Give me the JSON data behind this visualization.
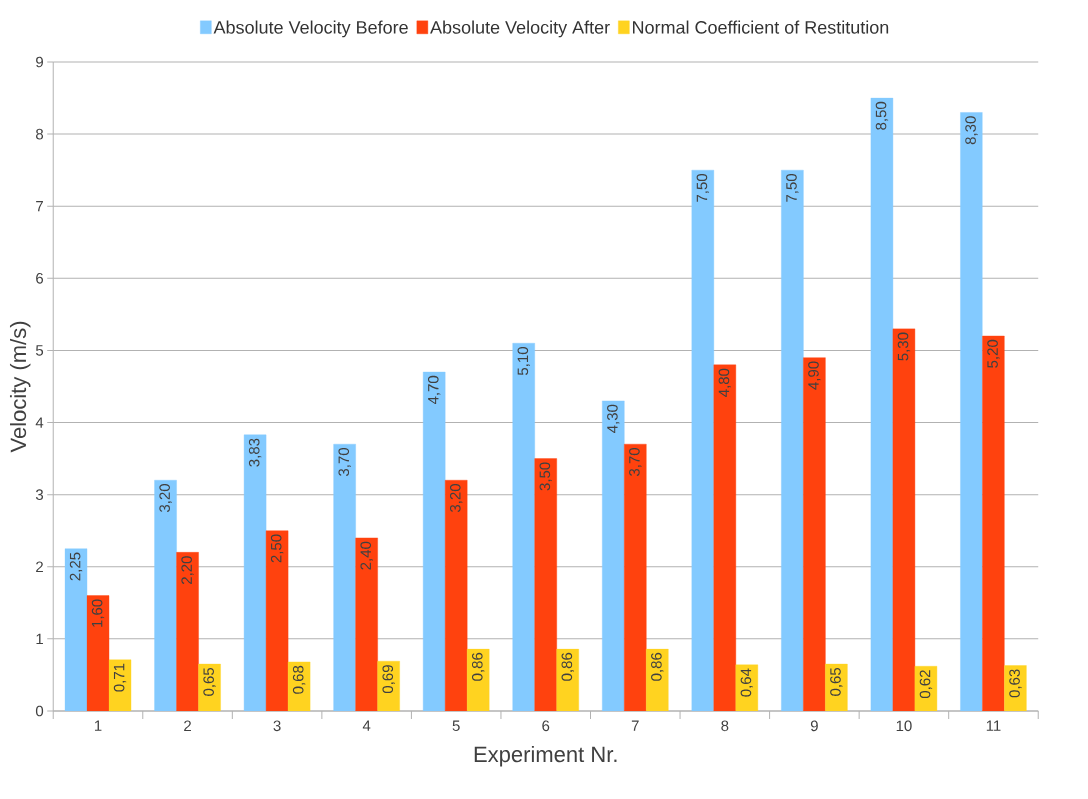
{
  "chart_data": {
    "type": "bar",
    "xlabel": "Experiment Nr.",
    "ylabel": "Velocity (m/s)",
    "categories": [
      "1",
      "2",
      "3",
      "4",
      "5",
      "6",
      "7",
      "8",
      "9",
      "10",
      "11"
    ],
    "series": [
      {
        "name": "Absolute Velocity Before",
        "color": "#83caff",
        "values": [
          2.25,
          3.2,
          3.83,
          3.7,
          4.7,
          5.1,
          4.3,
          7.5,
          7.5,
          8.5,
          8.3
        ],
        "value_labels": [
          "2,25",
          "3,20",
          "3,83",
          "3,70",
          "4,70",
          "5,10",
          "4,30",
          "7,50",
          "7,50",
          "8,50",
          "8,30"
        ]
      },
      {
        "name": "Absolute Velocity After",
        "color": "#ff420e",
        "values": [
          1.6,
          2.2,
          2.5,
          2.4,
          3.2,
          3.5,
          3.7,
          4.8,
          4.9,
          5.3,
          5.2
        ],
        "value_labels": [
          "1,60",
          "2,20",
          "2,50",
          "2,40",
          "3,20",
          "3,50",
          "3,70",
          "4,80",
          "4,90",
          "5,30",
          "5,20"
        ]
      },
      {
        "name": "Normal Coefficient of Restitution",
        "color": "#ffd320",
        "values": [
          0.71,
          0.65,
          0.68,
          0.69,
          0.86,
          0.86,
          0.86,
          0.64,
          0.65,
          0.62,
          0.63
        ],
        "value_labels": [
          "0,71",
          "0,65",
          "0,68",
          "0,69",
          "0,86",
          "0,86",
          "0,86",
          "0,64",
          "0,65",
          "0,62",
          "0,63"
        ]
      }
    ],
    "ylim": [
      0,
      9
    ],
    "yticks": [
      0,
      1,
      2,
      3,
      4,
      5,
      6,
      7,
      8,
      9
    ],
    "grid": "y",
    "legend": "top"
  }
}
